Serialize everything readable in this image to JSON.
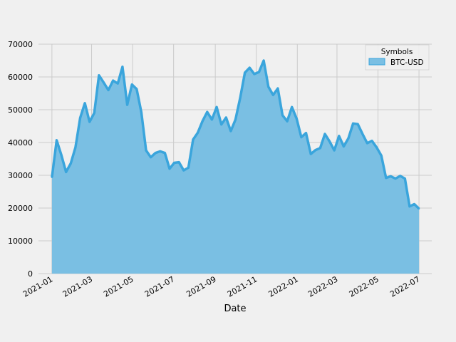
{
  "chart_data": {
    "type": "area",
    "xlabel": "Date",
    "ylabel": "",
    "ylim": [
      0,
      70000
    ],
    "yticks": [
      0,
      10000,
      20000,
      30000,
      40000,
      50000,
      60000,
      70000
    ],
    "xticks": [
      "2021-01",
      "2021-03",
      "2021-05",
      "2021-07",
      "2021-09",
      "2021-11",
      "2022-01",
      "2022-03",
      "2022-05",
      "2022-07"
    ],
    "grid": true,
    "legend": {
      "title": "Symbols",
      "placement": "top-right"
    },
    "colors": {
      "fill": "#7abfe3",
      "line": "#3aa5dc",
      "background": "#f0f0f0",
      "grid": "#cbcbcb"
    },
    "series": [
      {
        "name": "BTC-USD",
        "x": [
          "2021-01-01",
          "2021-01-08",
          "2021-01-15",
          "2021-01-22",
          "2021-01-29",
          "2021-02-05",
          "2021-02-12",
          "2021-02-19",
          "2021-02-26",
          "2021-03-05",
          "2021-03-12",
          "2021-03-19",
          "2021-03-26",
          "2021-04-02",
          "2021-04-09",
          "2021-04-16",
          "2021-04-23",
          "2021-04-30",
          "2021-05-07",
          "2021-05-14",
          "2021-05-21",
          "2021-05-28",
          "2021-06-04",
          "2021-06-11",
          "2021-06-18",
          "2021-06-25",
          "2021-07-02",
          "2021-07-09",
          "2021-07-16",
          "2021-07-23",
          "2021-07-30",
          "2021-08-06",
          "2021-08-13",
          "2021-08-20",
          "2021-08-27",
          "2021-09-03",
          "2021-09-10",
          "2021-09-17",
          "2021-09-24",
          "2021-10-01",
          "2021-10-08",
          "2021-10-15",
          "2021-10-22",
          "2021-10-29",
          "2021-11-05",
          "2021-11-12",
          "2021-11-19",
          "2021-11-26",
          "2021-12-03",
          "2021-12-10",
          "2021-12-17",
          "2021-12-24",
          "2021-12-31",
          "2022-01-07",
          "2022-01-14",
          "2022-01-21",
          "2022-01-28",
          "2022-02-04",
          "2022-02-11",
          "2022-02-18",
          "2022-02-25",
          "2022-03-04",
          "2022-03-11",
          "2022-03-18",
          "2022-03-25",
          "2022-04-01",
          "2022-04-08",
          "2022-04-15",
          "2022-04-22",
          "2022-04-29",
          "2022-05-06",
          "2022-05-13",
          "2022-05-20",
          "2022-05-27",
          "2022-06-03",
          "2022-06-10",
          "2022-06-17",
          "2022-06-24",
          "2022-07-01"
        ],
        "values": [
          29400,
          40700,
          36200,
          31000,
          33600,
          38500,
          47500,
          52000,
          46300,
          49000,
          60500,
          58300,
          56000,
          58900,
          58000,
          63100,
          51500,
          57700,
          56300,
          49200,
          37600,
          35500,
          36800,
          37300,
          36800,
          32000,
          33800,
          34000,
          31500,
          32300,
          40900,
          43000,
          46500,
          49300,
          47000,
          50800,
          45500,
          47600,
          43500,
          47000,
          53600,
          61300,
          62800,
          60900,
          61500,
          65000,
          57000,
          54500,
          56500,
          48300,
          46500,
          50800,
          47300,
          41600,
          42900,
          36500,
          37700,
          38300,
          42600,
          40300,
          37600,
          42000,
          38800,
          41300,
          45800,
          45600,
          42600,
          39800,
          40500,
          38500,
          36000,
          29200,
          29700,
          29000,
          29800,
          29000,
          20500,
          21200,
          19800
        ]
      }
    ]
  }
}
